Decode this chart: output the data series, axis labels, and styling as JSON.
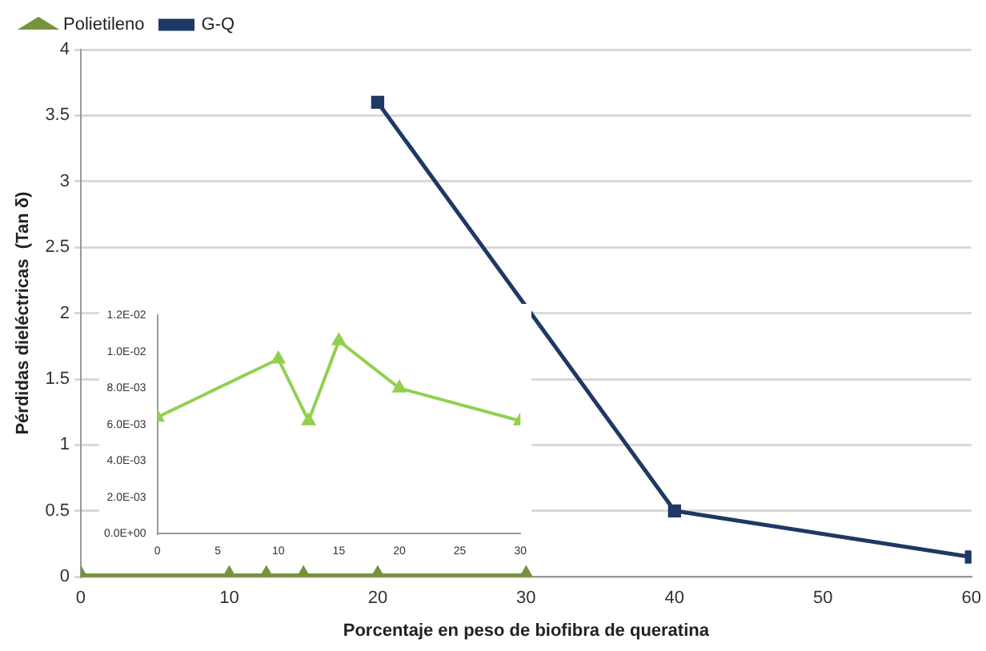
{
  "chart_data": [
    {
      "type": "line",
      "xlabel": "Porcentaje en peso de biofibra de queratina",
      "ylabel": "Pérdidas dieléctricas  (Tan δ)",
      "xlim": [
        0,
        60
      ],
      "xticks": [
        0,
        10,
        20,
        30,
        40,
        50,
        60
      ],
      "ylim": [
        0,
        4
      ],
      "yticks": [
        0,
        0.5,
        1,
        1.5,
        2,
        2.5,
        3,
        3.5,
        4
      ],
      "grid": "y",
      "legend": "top left",
      "series": [
        {
          "name": "Polietileno",
          "color": "#77933c",
          "marker": "triangle",
          "x": [
            0,
            10,
            12.5,
            15,
            20,
            30
          ],
          "values": [
            0.01,
            0.01,
            0.01,
            0.01,
            0.01,
            0.01
          ]
        },
        {
          "name": "G-Q",
          "color": "#1f3864",
          "marker": "square",
          "x": [
            20,
            40,
            60
          ],
          "values": [
            3.6,
            0.5,
            0.15
          ]
        }
      ]
    },
    {
      "type": "line",
      "xlim": [
        0,
        30
      ],
      "xticks": [
        0,
        5,
        10,
        15,
        20,
        25,
        30
      ],
      "ylim": [
        0,
        0.012
      ],
      "yticks": [
        {
          "value": 0,
          "label": "0.0E+00"
        },
        {
          "value": 0.002,
          "label": "2.0E-03"
        },
        {
          "value": 0.004,
          "label": "4.0E-03"
        },
        {
          "value": 0.006,
          "label": "6.0E-03"
        },
        {
          "value": 0.008,
          "label": "8.0E-03"
        },
        {
          "value": 0.01,
          "label": "1.0E-02"
        },
        {
          "value": 0.012,
          "label": "1.2E-02"
        }
      ],
      "series": [
        {
          "color": "#92d050",
          "marker": "triangle",
          "x": [
            0,
            10,
            12.5,
            15,
            20,
            30
          ],
          "values": [
            0.0064,
            0.0096,
            0.0062,
            0.0106,
            0.008,
            0.0062
          ]
        }
      ]
    }
  ]
}
